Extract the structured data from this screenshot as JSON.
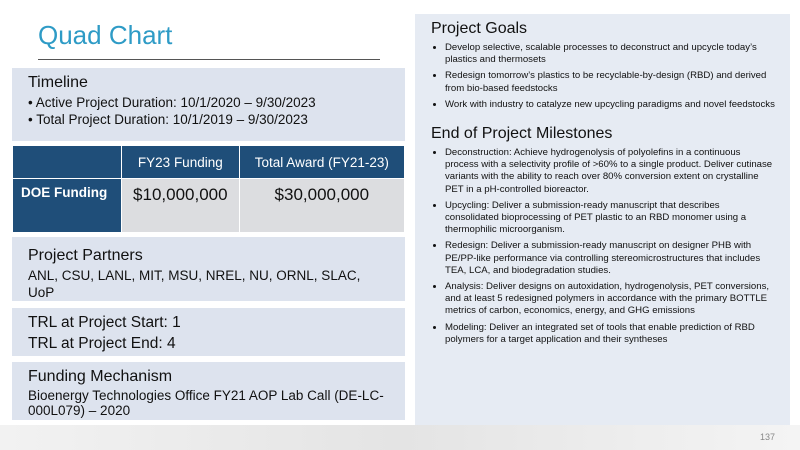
{
  "title": "Quad Chart",
  "timeline": {
    "heading": "Timeline",
    "items": [
      "• Active Project Duration: 10/1/2020 – 9/30/2023",
      "• Total Project Duration: 10/1/2019 – 9/30/2023"
    ]
  },
  "table": {
    "headers": [
      "FY23 Funding",
      "Total Award (FY21-23)"
    ],
    "rows": [
      [
        "DOE Funding",
        "$10,000,000",
        "$30,000,000"
      ]
    ]
  },
  "partners": {
    "heading": "Project Partners",
    "text": "ANL, CSU, LANL, MIT, MSU, NREL, NU, ORNL, SLAC, UoP"
  },
  "trl": {
    "start": "TRL at Project Start: 1",
    "end": "TRL at Project End: 4"
  },
  "funding": {
    "heading": "Funding Mechanism",
    "text": "Bioenergy Technologies Office FY21 AOP Lab Call (DE-LC-000L079) – 2020"
  },
  "goals": {
    "heading": "Project Goals",
    "items": [
      "Develop selective, scalable processes to deconstruct and upcycle today’s plastics and thermosets",
      "Redesign tomorrow’s plastics to be recyclable-by-design (RBD) and derived from bio-based feedstocks",
      "Work with industry to catalyze new upcycling paradigms and novel feedstocks"
    ]
  },
  "milestones": {
    "heading": "End of Project Milestones",
    "items": [
      "Deconstruction: Achieve hydrogenolysis of polyolefins in a continuous process with a selectivity profile of >60% to a single product. Deliver cutinase variants with the ability to reach over 80% conversion extent on crystalline PET in a pH-controlled bioreactor.",
      "Upcycling: Deliver a submission-ready manuscript that describes consolidated bioprocessing of PET plastic to an RBD monomer using a thermophilic microorganism.",
      "Redesign: Deliver a submission-ready manuscript on designer PHB with PE/PP-like performance via controlling stereomicrostructures that includes TEA, LCA, and biodegradation studies.",
      "Analysis: Deliver designs on autoxidation, hydrogenolysis, PET conversions, and at least 5 redesigned polymers in accordance with the primary BOTTLE metrics of carbon, economics, energy, and GHG emissions",
      "Modeling: Deliver an integrated set of tools that enable prediction of RBD polymers for a target application and their syntheses"
    ]
  },
  "page_number": 137
}
